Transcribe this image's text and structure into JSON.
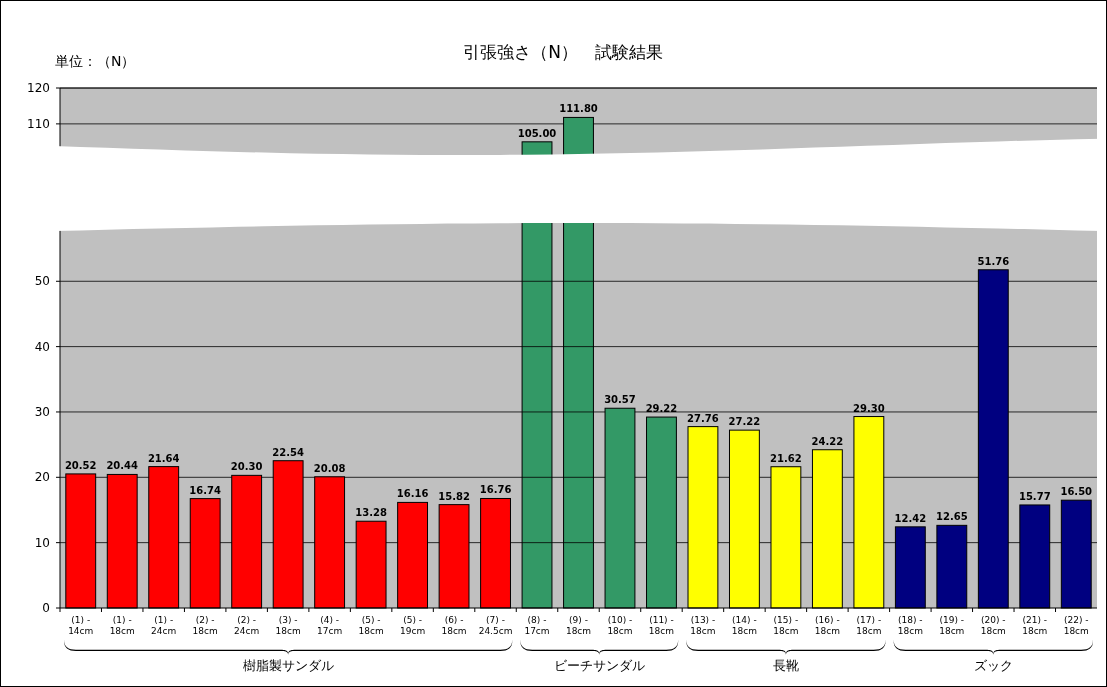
{
  "chart_data": [
    {
      "type": "bar",
      "title": "引張強さ（N）　試験結果",
      "ylabel": "単位：（N）",
      "categories": [
        null,
        null,
        null,
        null,
        null,
        null,
        null,
        null,
        null,
        null,
        null,
        null,
        null,
        null,
        null,
        null,
        null,
        null,
        null,
        null,
        null,
        null,
        null,
        null,
        null
      ],
      "values": [
        null,
        null,
        null,
        null,
        null,
        null,
        null,
        null,
        null,
        null,
        null,
        105.0,
        111.8,
        null,
        null,
        null,
        null,
        null,
        null,
        null,
        null,
        null,
        null,
        null,
        null
      ],
      "value_labels": [
        null,
        null,
        null,
        null,
        null,
        null,
        null,
        null,
        null,
        null,
        null,
        "105.00",
        "111.80",
        null,
        null,
        null,
        null,
        null,
        null,
        null,
        null,
        null,
        null,
        null,
        null
      ],
      "colors": [
        "#ff0000",
        "#ff0000",
        "#ff0000",
        "#ff0000",
        "#ff0000",
        "#ff0000",
        "#ff0000",
        "#ff0000",
        "#ff0000",
        "#ff0000",
        "#ff0000",
        "#339966",
        "#339966",
        "#339966",
        "#339966",
        "#ffff00",
        "#ffff00",
        "#ffff00",
        "#ffff00",
        "#ffff00",
        "#000080",
        "#000080",
        "#000080",
        "#000080",
        "#000080"
      ],
      "ylim": [
        103,
        120
      ],
      "yticks": [
        110,
        120
      ],
      "grid": "y",
      "tick_labels": "y"
    },
    {
      "type": "bar",
      "categories": [
        "(1) - 14cm",
        "(1) - 18cm",
        "(1) - 24cm",
        "(2) - 18cm",
        "(2) - 24cm",
        "(3) - 18cm",
        "(4) - 17cm",
        "(5) - 18cm",
        "(5) - 19cm",
        "(6) - 18cm",
        "(7) - 24.5cm",
        "(8) - 17cm",
        "(9) - 18cm",
        "(10) - 18cm",
        "(11) - 18cm",
        "(13) - 18cm",
        "(14) - 18cm",
        "(15) - 18cm",
        "(16) - 18cm",
        "(17) - 18cm",
        "(18) - 18cm",
        "(19) - 18cm",
        "(20) - 18cm",
        "(21) - 18cm",
        "(22) - 18cm"
      ],
      "values": [
        20.52,
        20.44,
        21.64,
        16.74,
        20.3,
        22.54,
        20.08,
        13.28,
        16.16,
        15.82,
        16.76,
        null,
        null,
        30.57,
        29.22,
        27.76,
        27.22,
        21.62,
        24.22,
        29.3,
        12.42,
        12.65,
        51.76,
        15.77,
        16.5
      ],
      "value_labels": [
        "20.52",
        "20.44",
        "21.64",
        "16.74",
        "20.30",
        "22.54",
        "20.08",
        "13.28",
        "16.16",
        "15.82",
        "16.76",
        null,
        null,
        "30.57",
        "29.22",
        "27.76",
        "27.22",
        "21.62",
        "24.22",
        "29.30",
        "12.42",
        "12.65",
        "51.76",
        "15.77",
        "16.50"
      ],
      "colors": [
        "#ff0000",
        "#ff0000",
        "#ff0000",
        "#ff0000",
        "#ff0000",
        "#ff0000",
        "#ff0000",
        "#ff0000",
        "#ff0000",
        "#ff0000",
        "#ff0000",
        "#339966",
        "#339966",
        "#339966",
        "#339966",
        "#ffff00",
        "#ffff00",
        "#ffff00",
        "#ffff00",
        "#ffff00",
        "#000080",
        "#000080",
        "#000080",
        "#000080",
        "#000080"
      ],
      "annotations": [
        "樹脂製サンダル",
        "ビーチサンダル",
        "長靴",
        "ズック"
      ],
      "ylim": [
        0,
        58
      ],
      "yticks": [
        0,
        10,
        20,
        30,
        40,
        50
      ],
      "grid": "y"
    }
  ]
}
